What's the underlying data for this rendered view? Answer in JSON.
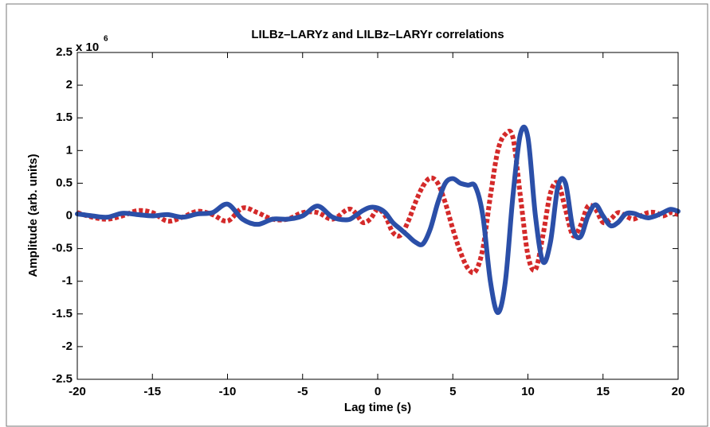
{
  "chart_data": {
    "type": "line",
    "title": "LILBz–LARYz and LILBz–LARYr correlations",
    "x_label": "Lag time (s)",
    "y_label": "Amplitude (arb. units)",
    "y_multiplier": {
      "base": "x 10",
      "exponent": "6"
    },
    "x": [
      -20,
      -19,
      -18,
      -17,
      -16,
      -15,
      -14,
      -13,
      -12,
      -11,
      -10,
      -9,
      -8,
      -7,
      -6,
      -5,
      -4,
      -3,
      -2,
      -1.5,
      -1,
      -0.5,
      0,
      0.5,
      1,
      1.5,
      2,
      2.5,
      3,
      3.5,
      4,
      4.5,
      5,
      5.5,
      6,
      6.5,
      7,
      7.5,
      8,
      8.5,
      9,
      9.5,
      10,
      10.5,
      11,
      11.5,
      12,
      12.5,
      13,
      13.5,
      14,
      14.5,
      15,
      15.5,
      16,
      16.5,
      17,
      17.5,
      18,
      18.5,
      19,
      19.5,
      20
    ],
    "series": [
      {
        "name": "LILBz-LARYz",
        "color": "#2b4fa8",
        "style": "solid",
        "values": [
          0.03,
          0,
          -0.02,
          0.04,
          0.02,
          0,
          0.02,
          -0.02,
          0.03,
          0.05,
          0.18,
          -0.05,
          -0.13,
          -0.05,
          -0.05,
          0,
          0.15,
          -0.02,
          -0.06,
          0,
          0.08,
          0.13,
          0.12,
          0.05,
          -0.1,
          -0.2,
          -0.3,
          -0.4,
          -0.43,
          -0.2,
          0.2,
          0.5,
          0.57,
          0.5,
          0.47,
          0.45,
          0,
          -1,
          -1.48,
          -1,
          0.3,
          1.25,
          1.2,
          0,
          -0.7,
          -0.4,
          0.45,
          0.5,
          -0.2,
          -0.32,
          0,
          0.17,
          0,
          -0.15,
          -0.1,
          0.03,
          0.04,
          0,
          -0.03,
          0,
          0.05,
          0.1,
          0.07
        ]
      },
      {
        "name": "LILBz-LARYr",
        "color": "#d42a2a",
        "style": "dotted",
        "values": [
          0.05,
          -0.02,
          -0.05,
          0,
          0.08,
          0.05,
          -0.08,
          -0.02,
          0.07,
          0.02,
          -0.08,
          0.12,
          0.05,
          -0.05,
          -0.05,
          0.05,
          0.05,
          -0.05,
          0.1,
          0.05,
          -0.1,
          -0.05,
          0.1,
          0,
          -0.25,
          -0.3,
          -0.1,
          0.2,
          0.45,
          0.58,
          0.5,
          0.2,
          -0.2,
          -0.55,
          -0.8,
          -0.85,
          -0.5,
          0.3,
          1,
          1.25,
          1.2,
          0.3,
          -0.6,
          -0.82,
          -0.3,
          0.35,
          0.5,
          0.1,
          -0.3,
          -0.15,
          0.15,
          0.1,
          -0.1,
          -0.05,
          0.05,
          0,
          -0.05,
          0,
          0.05,
          0.05,
          0,
          0.05,
          0.02
        ]
      }
    ],
    "xlim": [
      -20,
      20
    ],
    "xticks": [
      -20,
      -15,
      -10,
      -5,
      0,
      5,
      10,
      15,
      20
    ],
    "ylim": [
      -2.5,
      2.5
    ],
    "yticks": [
      -2.5,
      -2,
      -1.5,
      -1,
      -0.5,
      0,
      0.5,
      1,
      1.5,
      2,
      2.5
    ],
    "grid": false
  }
}
